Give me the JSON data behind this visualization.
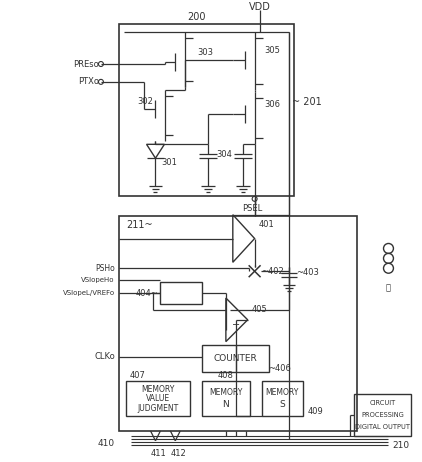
{
  "bg_color": "#ffffff",
  "line_color": "#333333",
  "figsize": [
    4.22,
    4.62
  ],
  "dpi": 100,
  "labels": {
    "vdd": "VDD",
    "pres": "PREso",
    "ptx": "PTXo",
    "psel": "PSEL",
    "psh": "PSHo",
    "vslopeh": "VSlopeHo",
    "vslopel": "VSlopeL/VREFo",
    "clk": "CLKo",
    "counter_text": "COUNTER",
    "judgment_text1": "JUDGMENT",
    "judgment_text2": "VALUE",
    "judgment_text3": "MEMORY",
    "n_memory_top": "N",
    "n_memory_bot": "MEMORY",
    "s_memory_top": "S",
    "s_memory_bot": "MEMORY",
    "digital_out1": "DIGITAL OUTPUT",
    "digital_out2": "PROCESSING",
    "digital_out3": "CIRCUIT",
    "n200": "200",
    "n201": "~ 201",
    "n211": "211~",
    "n301": "301",
    "n302": "302",
    "n303": "303",
    "n304": "304",
    "n305": "305",
    "n306": "306",
    "n401": "401",
    "n402": "~402",
    "n403": "~403",
    "n404": "404~",
    "n405": "405",
    "n406": "~406",
    "n407": "407",
    "n408": "408",
    "n409": "409",
    "n410": "410",
    "n411": "411",
    "n412": "412",
    "n210": "210"
  }
}
